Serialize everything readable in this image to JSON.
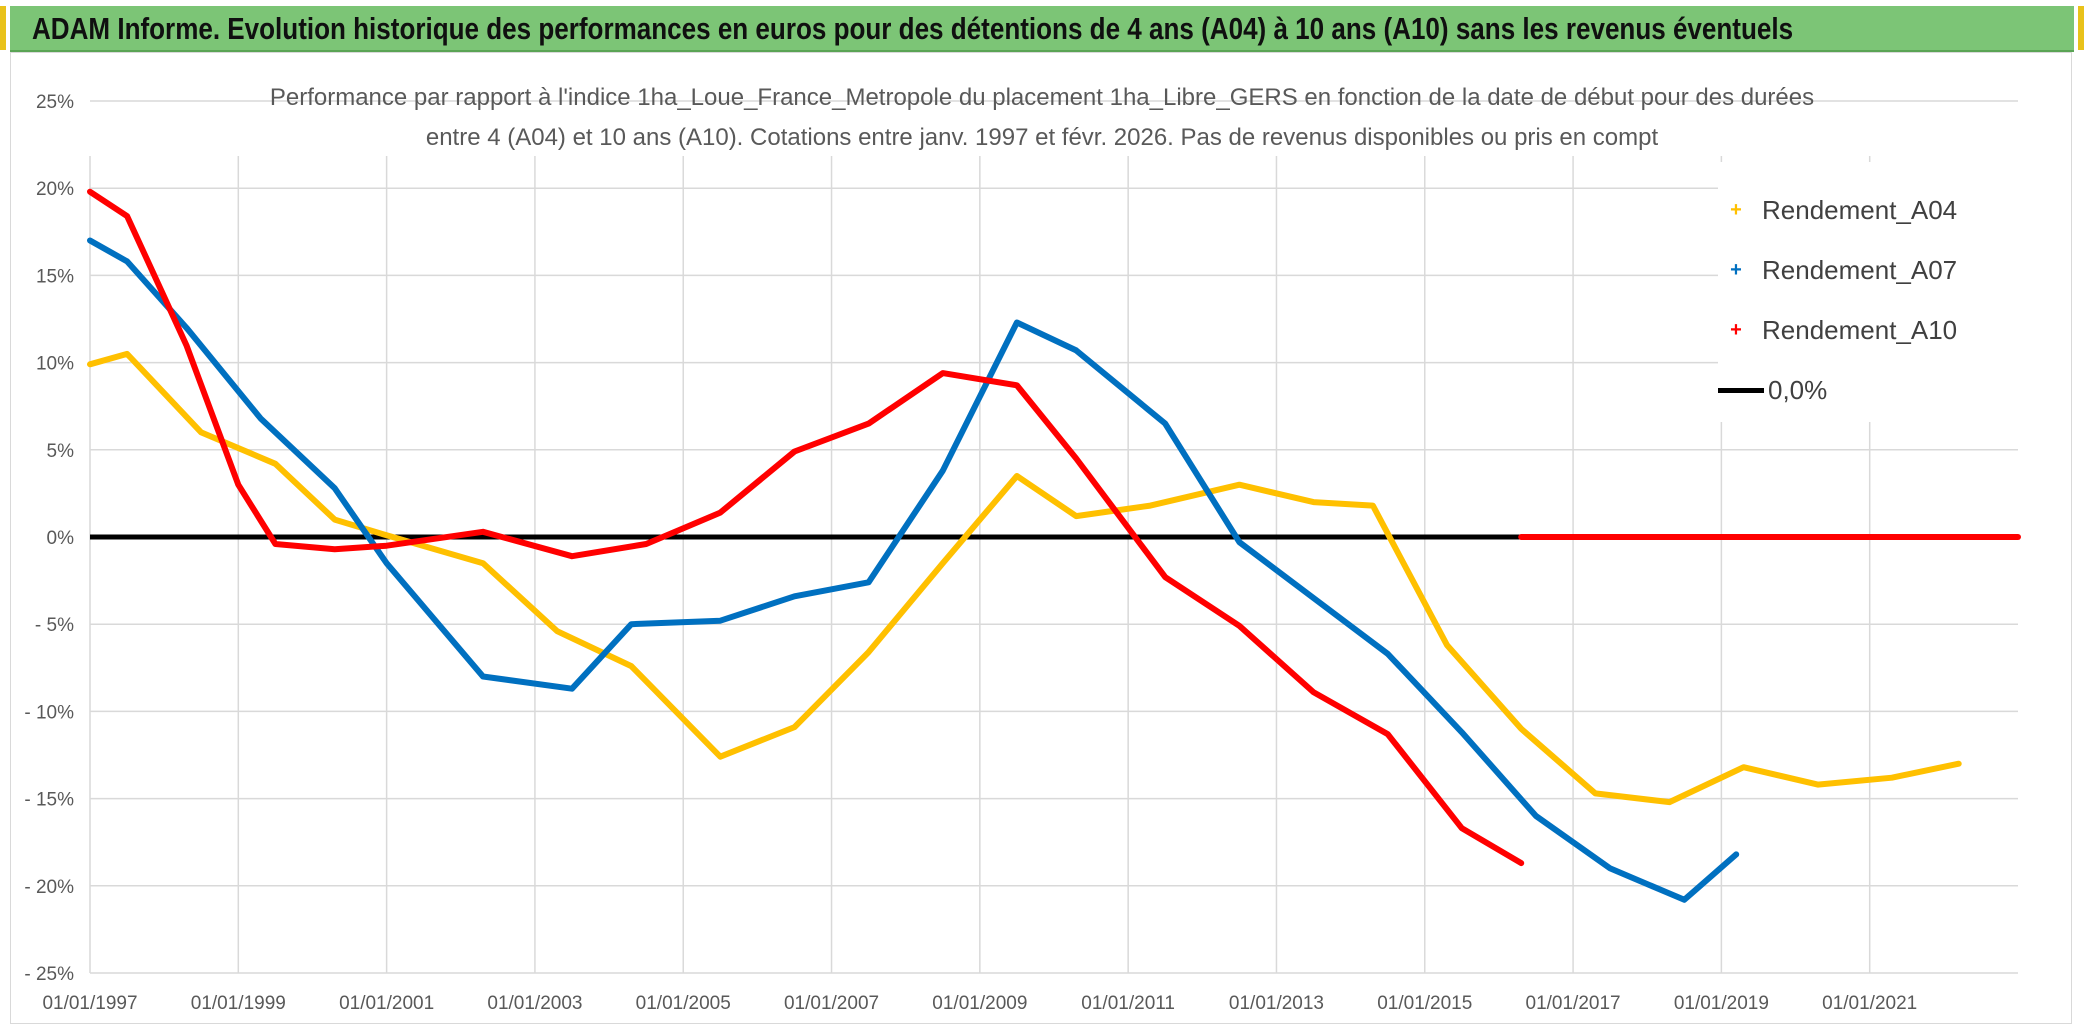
{
  "header": {
    "title": "ADAM Informe. Evolution historique des performances en euros pour des détentions de 4 ans (A04) à 10 ans (A10) sans les revenus éventuels"
  },
  "colors": {
    "banner": "#7cc576",
    "a04": "#FFC000",
    "a07": "#0070C0",
    "a10": "#FF0000",
    "zero": "#000000",
    "grid": "#D9D9D9"
  },
  "chart_data": {
    "type": "line",
    "title_lines": [
      "Performance par rapport à l'indice 1ha_Loue_France_Metropole  du placement 1ha_Libre_GERS en fonction de la date de début pour des durées",
      "entre 4 (A04) et 10 ans (A10). Cotations entre janv. 1997 et févr. 2026. Pas de revenus disponibles ou pris en compt"
    ],
    "xlabel": "",
    "ylabel": "",
    "x_range": [
      1997.0,
      2023.0
    ],
    "ylim": [
      -25,
      25
    ],
    "y_ticks": [
      25,
      20,
      15,
      10,
      5,
      0,
      -5,
      -10,
      -15,
      -20,
      -25
    ],
    "y_tick_labels": [
      "25%",
      "20%",
      "15%",
      "10%",
      "5%",
      "0%",
      "- 5%",
      "- 10%",
      "- 15%",
      "- 20%",
      "- 25%"
    ],
    "x_ticks": [
      1997,
      1999,
      2001,
      2003,
      2005,
      2007,
      2009,
      2011,
      2013,
      2015,
      2017,
      2019,
      2021
    ],
    "x_tick_labels": [
      "01/01/1997",
      "01/01/1999",
      "01/01/2001",
      "01/01/2003",
      "01/01/2005",
      "01/01/2007",
      "01/01/2009",
      "01/01/2011",
      "01/01/2013",
      "01/01/2015",
      "01/01/2017",
      "01/01/2019",
      "01/01/2021"
    ],
    "series": [
      {
        "name": "Rendement_A04",
        "color": "#FFC000",
        "points": [
          [
            1997.0,
            9.9
          ],
          [
            1997.5,
            10.5
          ],
          [
            1998.5,
            6.0
          ],
          [
            1999.5,
            4.2
          ],
          [
            2000.3,
            1.0
          ],
          [
            2001.0,
            0.1
          ],
          [
            2002.3,
            -1.5
          ],
          [
            2003.3,
            -5.4
          ],
          [
            2004.3,
            -7.4
          ],
          [
            2005.5,
            -12.6
          ],
          [
            2006.5,
            -10.9
          ],
          [
            2007.5,
            -6.6
          ],
          [
            2008.5,
            -1.5
          ],
          [
            2009.5,
            3.5
          ],
          [
            2010.3,
            1.2
          ],
          [
            2011.3,
            1.8
          ],
          [
            2012.5,
            3.0
          ],
          [
            2013.5,
            2.0
          ],
          [
            2014.3,
            1.8
          ],
          [
            2015.3,
            -6.2
          ],
          [
            2016.3,
            -11.0
          ],
          [
            2017.3,
            -14.7
          ],
          [
            2018.3,
            -15.2
          ],
          [
            2019.3,
            -13.2
          ],
          [
            2020.3,
            -14.2
          ],
          [
            2021.3,
            -13.8
          ],
          [
            2022.2,
            -13.0
          ]
        ]
      },
      {
        "name": "Rendement_A07",
        "color": "#0070C0",
        "points": [
          [
            1997.0,
            17.0
          ],
          [
            1997.5,
            15.8
          ],
          [
            1998.3,
            12.0
          ],
          [
            1999.3,
            6.8
          ],
          [
            2000.3,
            2.8
          ],
          [
            2001.0,
            -1.5
          ],
          [
            2002.3,
            -8.0
          ],
          [
            2003.5,
            -8.7
          ],
          [
            2004.3,
            -5.0
          ],
          [
            2005.5,
            -4.8
          ],
          [
            2006.5,
            -3.4
          ],
          [
            2007.5,
            -2.6
          ],
          [
            2008.5,
            3.8
          ],
          [
            2009.5,
            12.3
          ],
          [
            2010.3,
            10.7
          ],
          [
            2011.5,
            6.5
          ],
          [
            2012.5,
            -0.3
          ],
          [
            2013.5,
            -3.5
          ],
          [
            2014.5,
            -6.7
          ],
          [
            2015.5,
            -11.2
          ],
          [
            2016.5,
            -16.0
          ],
          [
            2017.5,
            -19.0
          ],
          [
            2018.5,
            -20.8
          ],
          [
            2019.2,
            -18.2
          ]
        ]
      },
      {
        "name": "Rendement_A10",
        "color": "#FF0000",
        "points": [
          [
            1997.0,
            19.8
          ],
          [
            1997.5,
            18.4
          ],
          [
            1998.3,
            11.0
          ],
          [
            1999.0,
            3.0
          ],
          [
            1999.5,
            -0.4
          ],
          [
            2000.3,
            -0.7
          ],
          [
            2001.0,
            -0.5
          ],
          [
            2002.3,
            0.3
          ],
          [
            2003.5,
            -1.1
          ],
          [
            2004.5,
            -0.4
          ],
          [
            2005.5,
            1.4
          ],
          [
            2006.5,
            4.9
          ],
          [
            2007.5,
            6.5
          ],
          [
            2008.5,
            9.4
          ],
          [
            2009.5,
            8.7
          ],
          [
            2010.3,
            4.5
          ],
          [
            2011.5,
            -2.3
          ],
          [
            2012.5,
            -5.1
          ],
          [
            2013.5,
            -8.9
          ],
          [
            2014.5,
            -11.3
          ],
          [
            2015.5,
            -16.7
          ],
          [
            2016.3,
            -18.7
          ]
        ]
      },
      {
        "name": "Rendement_A10",
        "color": "#FF0000",
        "points": [
          [
            2016.3,
            0.0
          ],
          [
            2023.0,
            0.0
          ]
        ]
      }
    ],
    "zero_line": {
      "name": "0,0%",
      "value": 0,
      "x_range": [
        1997.0,
        2016.3
      ],
      "color": "#000000"
    }
  },
  "legend": {
    "items": [
      {
        "label": "Rendement_A04",
        "marker": "+",
        "color": "#FFC000"
      },
      {
        "label": "Rendement_A07",
        "marker": "+",
        "color": "#0070C0"
      },
      {
        "label": "Rendement_A10",
        "marker": "+",
        "color": "#FF0000"
      },
      {
        "label": "0,0%",
        "marker": "line",
        "color": "#000000"
      }
    ]
  }
}
